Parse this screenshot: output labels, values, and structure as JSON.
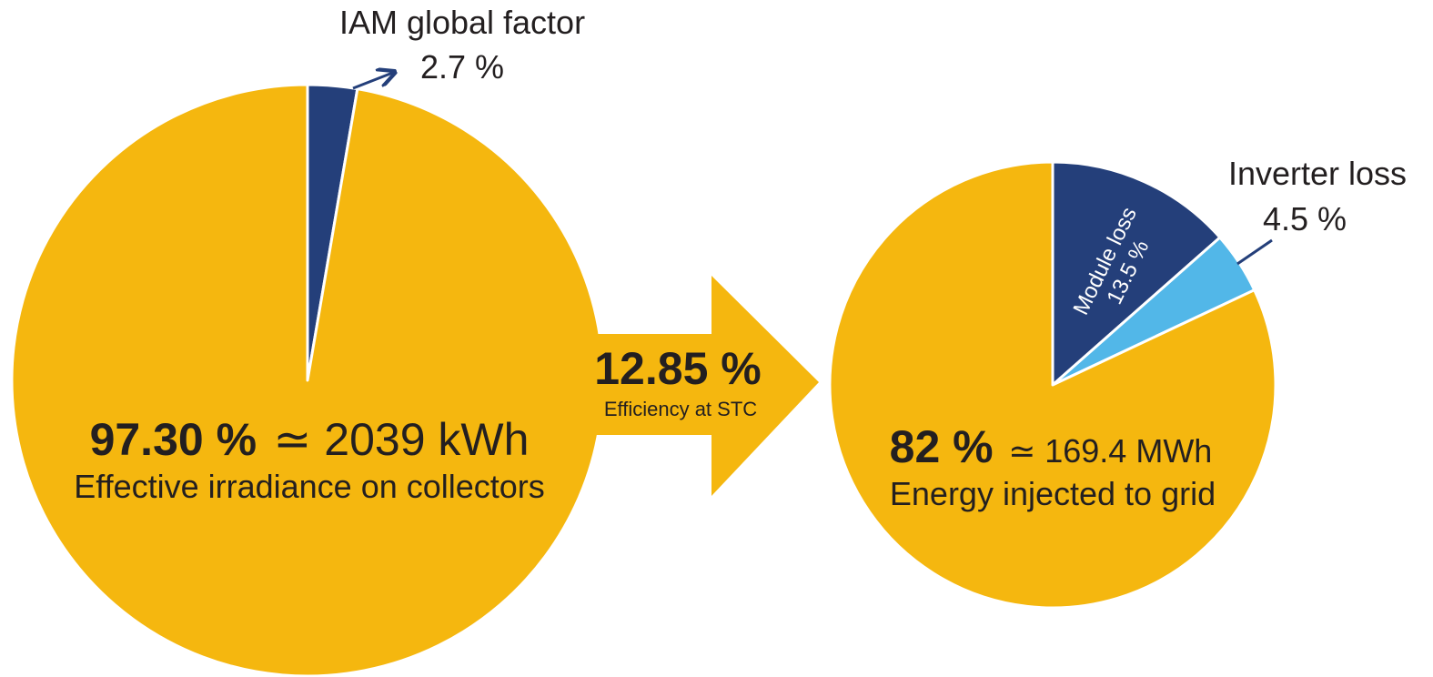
{
  "colors": {
    "gold": "#F5B70F",
    "navy": "#243F7A",
    "light_blue": "#52B7E8",
    "text": "#231F20",
    "white": "#FFFFFF"
  },
  "chart_data": [
    {
      "type": "pie",
      "slices": [
        {
          "label": "Effective irradiance on collectors",
          "value": 97.3
        },
        {
          "label": "IAM global factor",
          "value": 2.7
        }
      ],
      "annotations": {
        "iam_title": "IAM global factor",
        "iam_value": "2.7 %",
        "main_percent": "97.30 %",
        "main_approx": "≃ 2039 kWh",
        "main_label": "Effective irradiance on collectors"
      }
    },
    {
      "type": "pie",
      "slices": [
        {
          "label": "Module loss",
          "value": 13.5
        },
        {
          "label": "Inverter loss",
          "value": 4.5
        },
        {
          "label": "Energy injected to grid",
          "value": 82
        }
      ],
      "annotations": {
        "module_title": "Module loss",
        "module_value": "13.5 %",
        "inverter_title": "Inverter loss",
        "inverter_value": "4.5 %",
        "main_percent": "82 %",
        "main_approx": "≃ 169.4 MWh",
        "main_label": "Energy injected to grid"
      }
    }
  ],
  "arrow": {
    "value": "12.85 %",
    "label": "Efficiency at STC"
  }
}
